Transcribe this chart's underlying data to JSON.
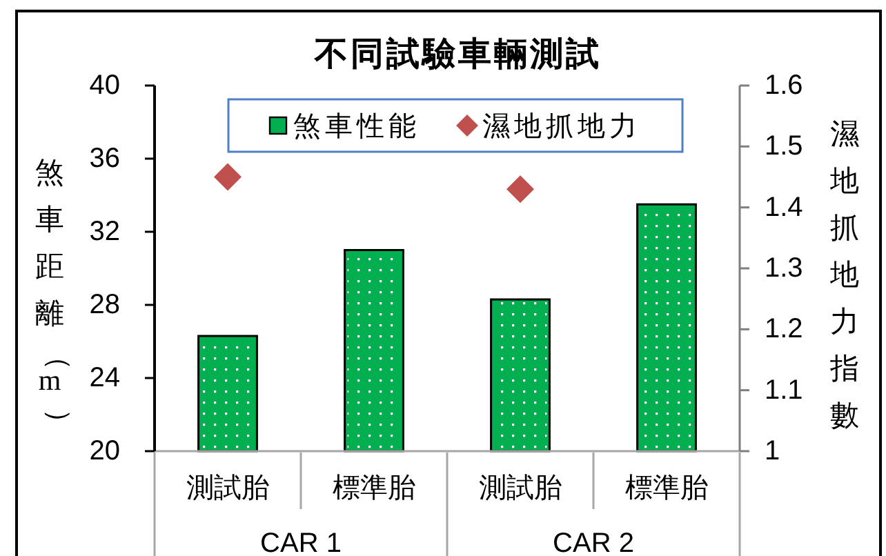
{
  "chart_data": {
    "type": "bar",
    "title": "不同試驗車輛測試",
    "ylabel": "煞車距離（m）",
    "y2label": "濕地抓地力指數",
    "categories": [
      "測試胎",
      "標準胎",
      "測試胎",
      "標準胎"
    ],
    "annotations": [
      "CAR 1",
      "CAR 2"
    ],
    "series": [
      {
        "name": "煞車性能",
        "type": "bar",
        "color": "#00b050",
        "values": [
          26.3,
          31.0,
          28.3,
          33.5
        ]
      },
      {
        "name": "濕地抓地力",
        "type": "scatter",
        "axis": "y2",
        "marker": "diamond",
        "color": "#c0504d",
        "values": [
          1.45,
          null,
          1.43,
          null
        ]
      }
    ],
    "ylim": [
      20,
      40
    ],
    "yticks": [
      20,
      24,
      28,
      32,
      36,
      40
    ],
    "y2lim": [
      1,
      1.6
    ],
    "y2ticks": [
      1,
      1.1,
      1.2,
      1.3,
      1.4,
      1.5,
      1.6
    ],
    "legend": "top",
    "grid": false
  }
}
